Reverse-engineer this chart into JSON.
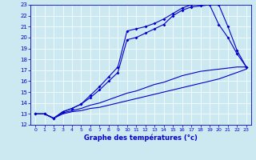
{
  "xlabel": "Graphe des températures (°c)",
  "bg_color": "#cce8f0",
  "line_color": "#0000cc",
  "xlim": [
    -0.5,
    23.5
  ],
  "ylim": [
    12,
    23
  ],
  "xticks": [
    0,
    1,
    2,
    3,
    4,
    5,
    6,
    7,
    8,
    9,
    10,
    11,
    12,
    13,
    14,
    15,
    16,
    17,
    18,
    19,
    20,
    21,
    22,
    23
  ],
  "yticks": [
    12,
    13,
    14,
    15,
    16,
    17,
    18,
    19,
    20,
    21,
    22,
    23
  ],
  "line1_x": [
    0,
    1,
    2,
    3,
    4,
    5,
    6,
    7,
    8,
    9,
    10,
    11,
    12,
    13,
    14,
    15,
    16,
    17,
    18,
    19,
    20,
    21,
    22,
    23
  ],
  "line1_y": [
    13.0,
    13.0,
    12.6,
    13.2,
    13.5,
    13.9,
    14.7,
    15.5,
    16.4,
    17.3,
    20.6,
    20.8,
    21.0,
    21.3,
    21.7,
    22.2,
    22.7,
    23.0,
    23.1,
    23.2,
    23.0,
    21.0,
    18.8,
    17.3
  ],
  "line2_x": [
    0,
    1,
    2,
    3,
    4,
    5,
    6,
    7,
    8,
    9,
    10,
    11,
    12,
    13,
    14,
    15,
    16,
    17,
    18,
    19,
    20,
    21,
    22,
    23
  ],
  "line2_y": [
    13.0,
    13.0,
    12.6,
    13.2,
    13.5,
    13.9,
    14.5,
    15.2,
    16.0,
    16.8,
    19.8,
    20.0,
    20.4,
    20.8,
    21.2,
    22.0,
    22.5,
    22.8,
    22.9,
    23.0,
    21.2,
    20.0,
    18.5,
    17.3
  ],
  "line3_x": [
    0,
    1,
    2,
    3,
    4,
    5,
    6,
    7,
    8,
    9,
    10,
    11,
    12,
    13,
    14,
    15,
    16,
    17,
    18,
    19,
    20,
    21,
    22,
    23
  ],
  "line3_y": [
    13.0,
    13.0,
    12.6,
    13.1,
    13.3,
    13.5,
    13.8,
    14.0,
    14.3,
    14.6,
    14.9,
    15.1,
    15.4,
    15.7,
    15.9,
    16.2,
    16.5,
    16.7,
    16.9,
    17.0,
    17.1,
    17.2,
    17.3,
    17.3
  ],
  "line4_x": [
    0,
    1,
    2,
    3,
    4,
    5,
    6,
    7,
    8,
    9,
    10,
    11,
    12,
    13,
    14,
    15,
    16,
    17,
    18,
    19,
    20,
    21,
    22,
    23
  ],
  "line4_y": [
    13.0,
    13.0,
    12.6,
    13.0,
    13.2,
    13.3,
    13.5,
    13.6,
    13.8,
    14.0,
    14.2,
    14.4,
    14.6,
    14.8,
    15.0,
    15.2,
    15.4,
    15.6,
    15.8,
    16.0,
    16.2,
    16.5,
    16.8,
    17.1
  ]
}
